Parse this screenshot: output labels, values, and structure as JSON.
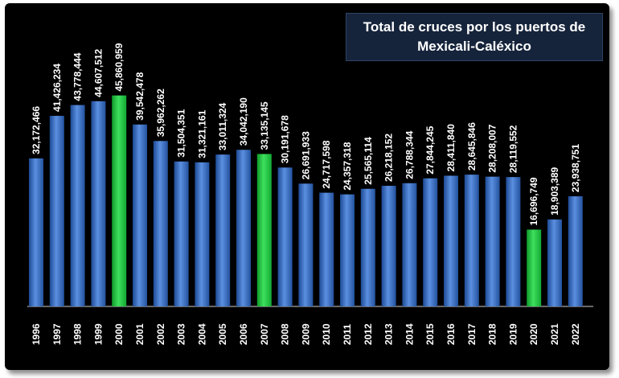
{
  "chart_data": {
    "type": "bar",
    "title_line1": "Total de cruces por los puertos de",
    "title_line2": "Mexicali-Caléxico",
    "categories": [
      "1996",
      "1997",
      "1998",
      "1999",
      "2000",
      "2001",
      "2002",
      "2003",
      "2004",
      "2005",
      "2006",
      "2007",
      "2008",
      "2009",
      "2010",
      "2011",
      "2012",
      "2013",
      "2014",
      "2015",
      "2016",
      "2017",
      "2018",
      "2019",
      "2020",
      "2021",
      "2022"
    ],
    "values": [
      32172466,
      41426234,
      43778444,
      44607512,
      45860959,
      39542478,
      35962262,
      31504351,
      31321161,
      33011324,
      34042190,
      33135145,
      30191678,
      26691933,
      24717598,
      24357318,
      25565114,
      26218152,
      26788344,
      27844245,
      28411840,
      28645846,
      28208007,
      28119552,
      16696749,
      18903389,
      23938751
    ],
    "labels": [
      "32,172,466",
      "41,426,234",
      "43,778,444",
      "44,607,512",
      "45,860,959",
      "39,542,478",
      "35,962,262",
      "31,504,351",
      "31,321,161",
      "33,011,324",
      "34,042,190",
      "33,135,145",
      "30,191,678",
      "26,691,933",
      "24,717,598",
      "24,357,318",
      "25,565,114",
      "26,218,152",
      "26,788,344",
      "27,844,245",
      "28,411,840",
      "28,645,846",
      "28,208,007",
      "28,119,552",
      "16,696,749",
      "18,903,389",
      "23,938,751"
    ],
    "highlight_categories": [
      "2000",
      "2007",
      "2020"
    ],
    "colors": {
      "bar": "#3a6fc4",
      "highlight": "#1fc23f",
      "background": "#000000",
      "text": "#ffffff"
    },
    "ylim": [
      0,
      50000000
    ],
    "grid": false,
    "legend": "none"
  }
}
